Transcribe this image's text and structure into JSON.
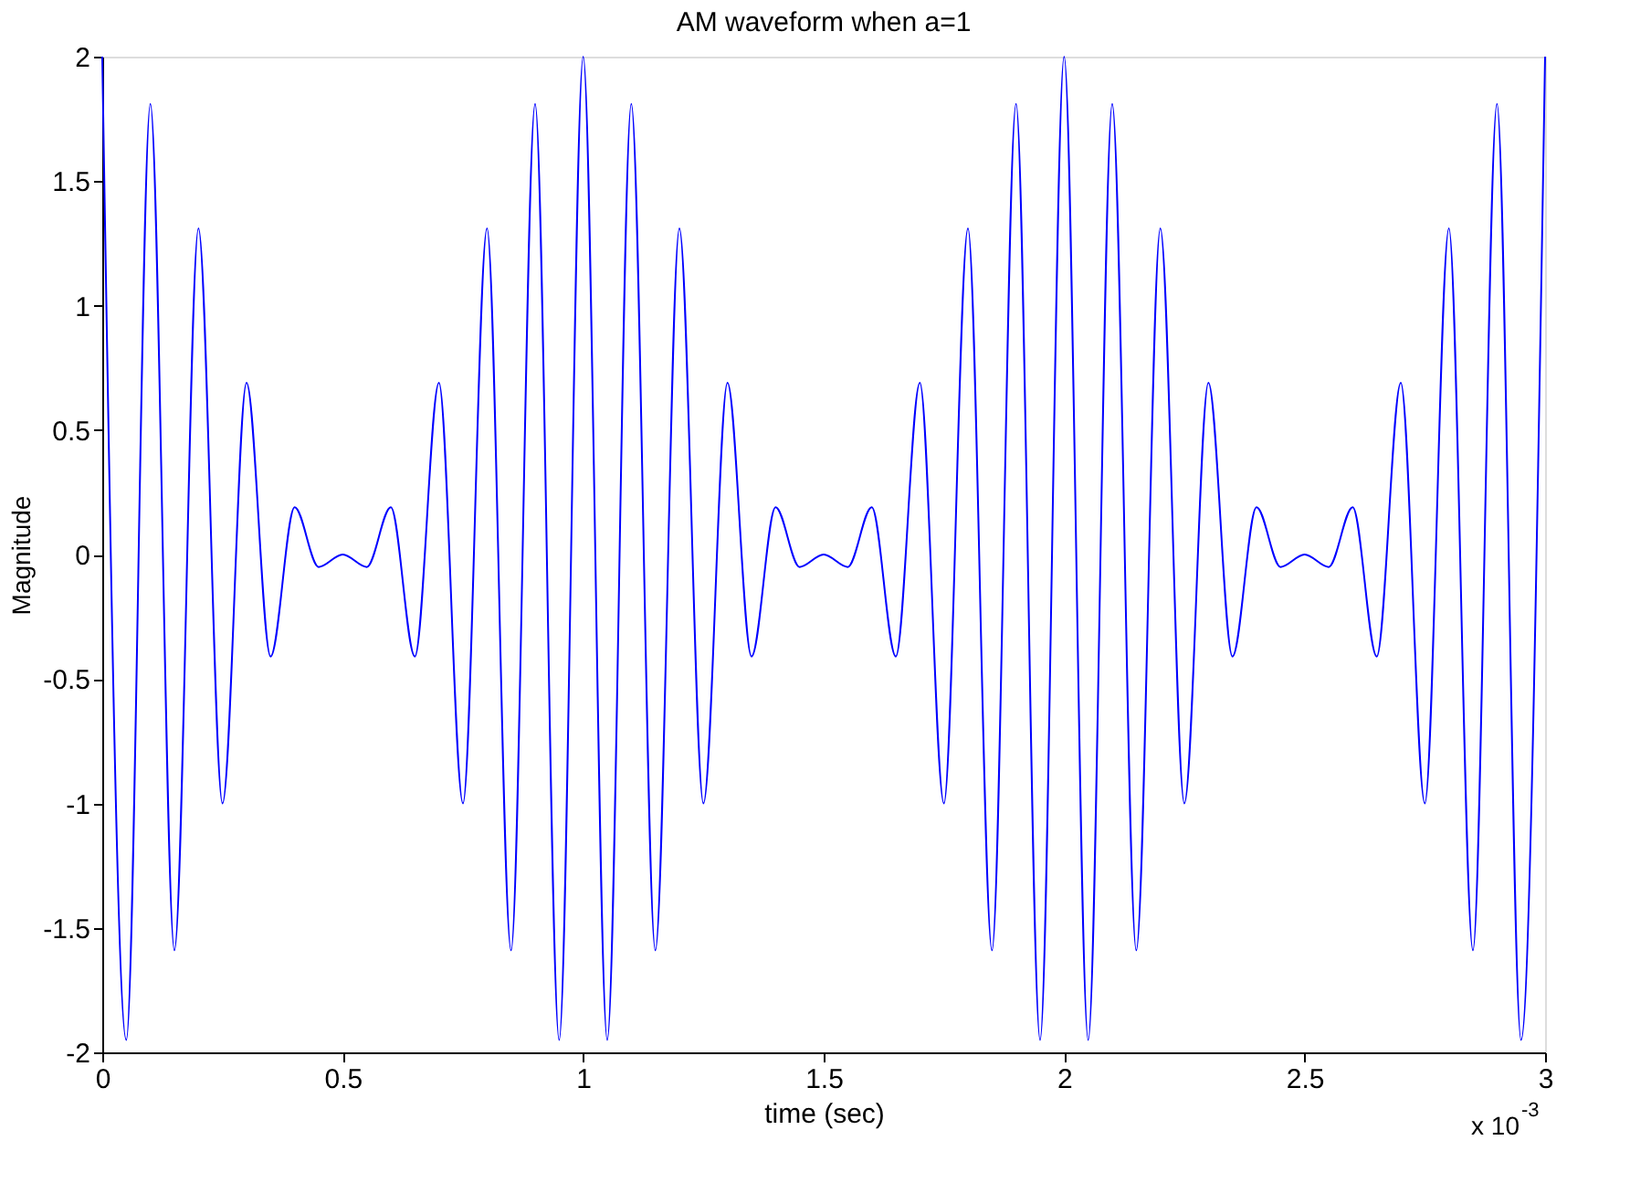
{
  "chart_data": {
    "type": "line",
    "title": "AM waveform when a=1",
    "xlabel": "time (sec)",
    "ylabel": "Magnitude",
    "x": [
      0,
      0.05,
      0.1,
      0.15,
      0.2,
      0.25,
      0.3,
      0.35,
      0.4,
      0.45,
      0.5,
      0.55,
      0.6,
      0.65,
      0.7,
      0.75,
      0.8,
      0.85,
      0.9,
      0.95,
      1,
      1.05,
      1.1,
      1.15,
      1.2,
      1.25,
      1.3,
      1.35,
      1.4,
      1.45,
      1.5,
      1.55,
      1.6,
      1.65,
      1.7,
      1.75,
      1.8,
      1.85,
      1.9,
      1.95,
      2,
      2.05,
      2.1,
      2.15,
      2.2,
      2.25,
      2.3,
      2.35,
      2.4,
      2.45,
      2.5,
      2.55,
      2.6,
      2.65,
      2.7,
      2.75,
      2.8,
      2.85,
      2.9,
      2.95,
      3
    ],
    "series": [
      {
        "color": "#0000ff",
        "values": [
          2,
          -1.95,
          1.81,
          -1.59,
          1.31,
          -1,
          0.69,
          -0.41,
          0.19,
          -0.05,
          0,
          -0.05,
          0.19,
          -0.41,
          0.69,
          -1,
          1.31,
          -1.59,
          1.81,
          -1.95,
          2,
          -1.95,
          1.81,
          -1.59,
          1.31,
          -1,
          0.69,
          -0.41,
          0.19,
          -0.05,
          0,
          -0.05,
          0.19,
          -0.41,
          0.69,
          -1,
          1.31,
          -1.59,
          1.81,
          -1.95,
          2,
          -1.95,
          1.81,
          -1.59,
          1.31,
          -1,
          0.69,
          -0.41,
          0.19,
          -0.05,
          0,
          -0.05,
          0.19,
          -0.41,
          0.69,
          -1,
          1.31,
          -1.59,
          1.81,
          -1.95,
          2
        ]
      }
    ],
    "xlim": [
      0,
      3
    ],
    "xticks": [
      0,
      0.5,
      1,
      1.5,
      2,
      2.5,
      3
    ],
    "ylim": [
      -2,
      2
    ],
    "yticks": [
      -2,
      -1.5,
      -1,
      -0.5,
      0,
      0.5,
      1,
      1.5,
      2
    ],
    "annotations": [
      "x 10$^{-3}$"
    ],
    "grid": false,
    "legend": false,
    "marker": "none",
    "line_style": "solid"
  }
}
